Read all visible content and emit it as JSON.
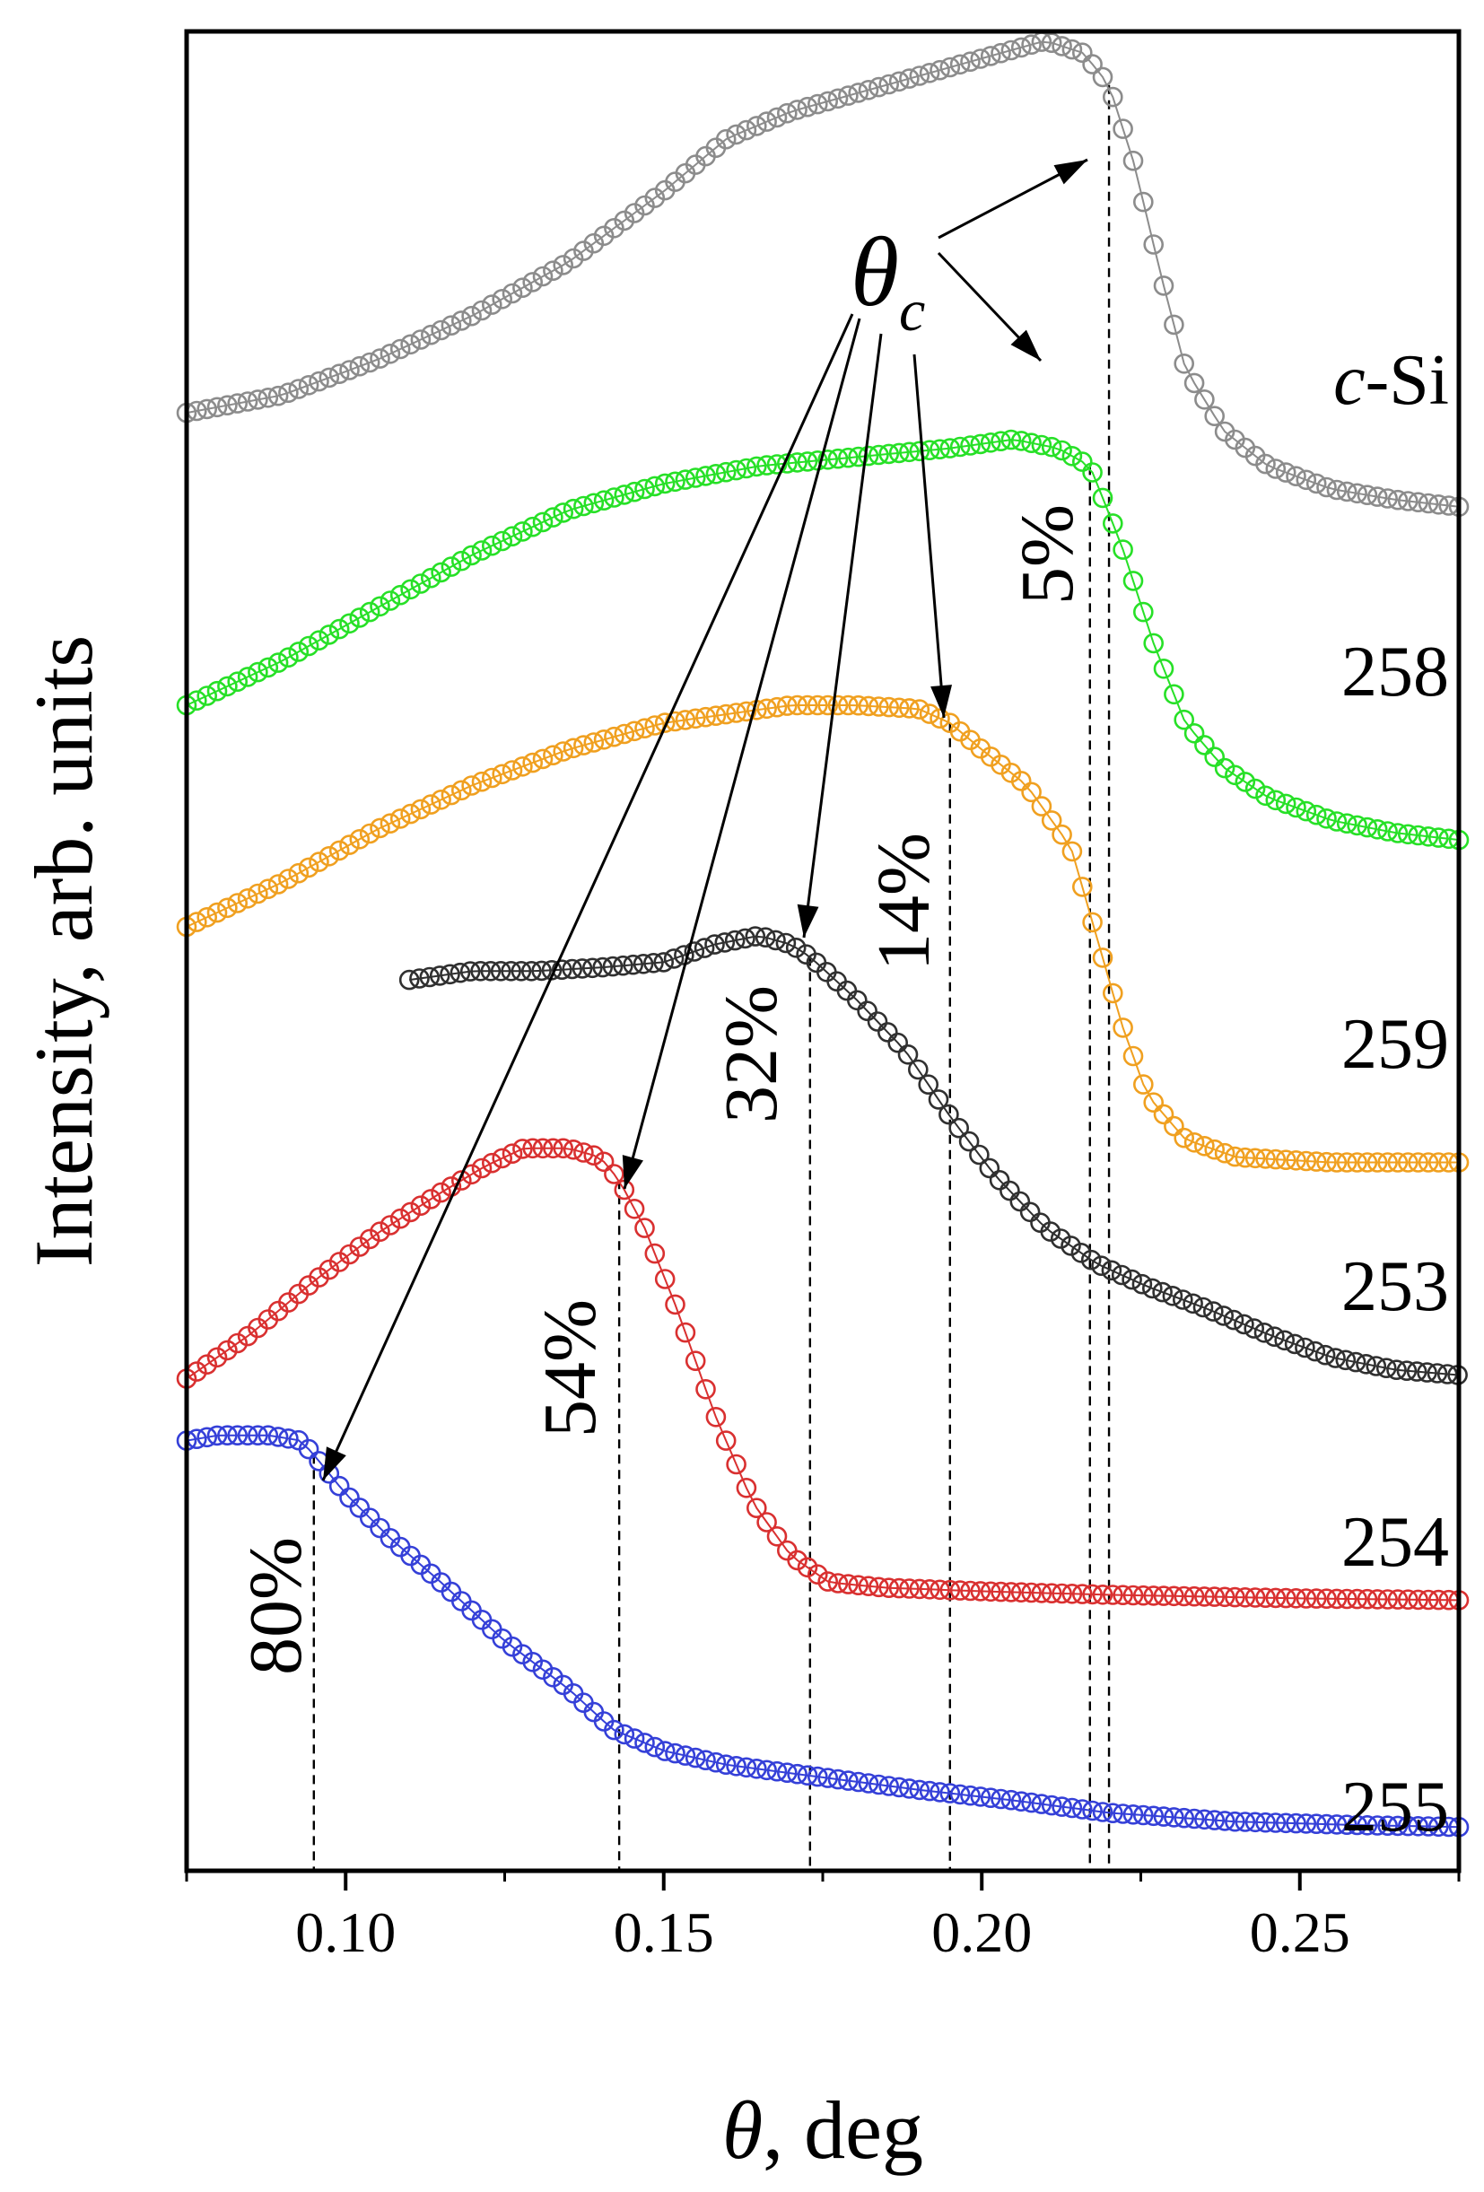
{
  "chart_data": {
    "type": "scatter",
    "xlabel_symbol": "θ",
    "xlabel_rest": ", deg",
    "ylabel": "Intensity, arb. units",
    "xlim": [
      0.075,
      0.275
    ],
    "ylim": [
      0,
      10
    ],
    "x_ticks": [
      0.1,
      0.15,
      0.2,
      0.25
    ],
    "x_tick_labels": [
      "0.10",
      "0.15",
      "0.20",
      "0.25"
    ],
    "y_ticks_visible": false,
    "grid": false,
    "marker": "open-circle",
    "annotation_symbol": "θ",
    "annotation_subscript": "c",
    "series": [
      {
        "name": "c-Si",
        "name_italic": "c",
        "name_rest": "-Si",
        "color": "#8c8c8c",
        "x_range": [
          0.075,
          0.275
        ],
        "theta_c": 0.22,
        "percent_label": "",
        "curve": [
          [
            0.075,
            8.05
          ],
          [
            0.09,
            8.15
          ],
          [
            0.105,
            8.35
          ],
          [
            0.12,
            8.6
          ],
          [
            0.135,
            8.9
          ],
          [
            0.15,
            9.3
          ],
          [
            0.16,
            9.6
          ],
          [
            0.17,
            9.75
          ],
          [
            0.18,
            9.85
          ],
          [
            0.19,
            9.95
          ],
          [
            0.2,
            10.05
          ],
          [
            0.21,
            10.15
          ],
          [
            0.216,
            10.08
          ],
          [
            0.22,
            9.9
          ],
          [
            0.224,
            9.45
          ],
          [
            0.228,
            8.85
          ],
          [
            0.232,
            8.3
          ],
          [
            0.238,
            7.95
          ],
          [
            0.245,
            7.75
          ],
          [
            0.255,
            7.62
          ],
          [
            0.265,
            7.56
          ],
          [
            0.275,
            7.52
          ]
        ]
      },
      {
        "name": "258",
        "color": "#27e027",
        "x_range": [
          0.075,
          0.275
        ],
        "theta_c": 0.217,
        "percent_label": "5%",
        "curve": [
          [
            0.075,
            6.4
          ],
          [
            0.09,
            6.65
          ],
          [
            0.105,
            6.95
          ],
          [
            0.12,
            7.25
          ],
          [
            0.135,
            7.5
          ],
          [
            0.15,
            7.65
          ],
          [
            0.165,
            7.75
          ],
          [
            0.18,
            7.8
          ],
          [
            0.195,
            7.85
          ],
          [
            0.205,
            7.9
          ],
          [
            0.212,
            7.85
          ],
          [
            0.217,
            7.75
          ],
          [
            0.222,
            7.3
          ],
          [
            0.227,
            6.75
          ],
          [
            0.232,
            6.3
          ],
          [
            0.238,
            6.05
          ],
          [
            0.245,
            5.88
          ],
          [
            0.255,
            5.75
          ],
          [
            0.265,
            5.68
          ],
          [
            0.275,
            5.64
          ]
        ]
      },
      {
        "name": "259",
        "color": "#f0a020",
        "x_range": [
          0.075,
          0.275
        ],
        "theta_c": 0.195,
        "percent_label": "14%",
        "curve": [
          [
            0.075,
            5.15
          ],
          [
            0.09,
            5.4
          ],
          [
            0.105,
            5.7
          ],
          [
            0.12,
            5.95
          ],
          [
            0.135,
            6.15
          ],
          [
            0.15,
            6.3
          ],
          [
            0.16,
            6.35
          ],
          [
            0.17,
            6.4
          ],
          [
            0.18,
            6.4
          ],
          [
            0.19,
            6.38
          ],
          [
            0.195,
            6.3
          ],
          [
            0.2,
            6.15
          ],
          [
            0.207,
            5.95
          ],
          [
            0.214,
            5.6
          ],
          [
            0.218,
            5.1
          ],
          [
            0.222,
            4.6
          ],
          [
            0.226,
            4.2
          ],
          [
            0.232,
            3.95
          ],
          [
            0.24,
            3.85
          ],
          [
            0.255,
            3.82
          ],
          [
            0.275,
            3.82
          ]
        ]
      },
      {
        "name": "253",
        "color": "#303030",
        "x_range": [
          0.11,
          0.275
        ],
        "theta_c": 0.173,
        "percent_label": "32%",
        "curve": [
          [
            0.11,
            4.85
          ],
          [
            0.12,
            4.9
          ],
          [
            0.13,
            4.9
          ],
          [
            0.14,
            4.92
          ],
          [
            0.15,
            4.95
          ],
          [
            0.158,
            5.05
          ],
          [
            0.165,
            5.1
          ],
          [
            0.17,
            5.05
          ],
          [
            0.173,
            4.98
          ],
          [
            0.18,
            4.75
          ],
          [
            0.188,
            4.45
          ],
          [
            0.195,
            4.08
          ],
          [
            0.202,
            3.75
          ],
          [
            0.21,
            3.45
          ],
          [
            0.218,
            3.25
          ],
          [
            0.226,
            3.12
          ],
          [
            0.235,
            3.0
          ],
          [
            0.245,
            2.85
          ],
          [
            0.255,
            2.72
          ],
          [
            0.265,
            2.65
          ],
          [
            0.275,
            2.62
          ]
        ]
      },
      {
        "name": "254",
        "color": "#d93030",
        "x_range": [
          0.075,
          0.275
        ],
        "theta_c": 0.143,
        "percent_label": "54%",
        "curve": [
          [
            0.075,
            2.6
          ],
          [
            0.085,
            2.85
          ],
          [
            0.095,
            3.15
          ],
          [
            0.105,
            3.42
          ],
          [
            0.115,
            3.65
          ],
          [
            0.122,
            3.8
          ],
          [
            0.128,
            3.9
          ],
          [
            0.135,
            3.9
          ],
          [
            0.14,
            3.85
          ],
          [
            0.143,
            3.72
          ],
          [
            0.147,
            3.45
          ],
          [
            0.152,
            3.0
          ],
          [
            0.158,
            2.4
          ],
          [
            0.164,
            1.9
          ],
          [
            0.17,
            1.6
          ],
          [
            0.176,
            1.45
          ],
          [
            0.185,
            1.42
          ],
          [
            0.2,
            1.4
          ],
          [
            0.22,
            1.38
          ],
          [
            0.25,
            1.36
          ],
          [
            0.275,
            1.35
          ]
        ]
      },
      {
        "name": "255",
        "color": "#3540d8",
        "x_range": [
          0.075,
          0.275
        ],
        "theta_c": 0.095,
        "percent_label": "80%",
        "curve": [
          [
            0.075,
            2.25
          ],
          [
            0.08,
            2.28
          ],
          [
            0.088,
            2.28
          ],
          [
            0.093,
            2.25
          ],
          [
            0.095,
            2.17
          ],
          [
            0.1,
            1.95
          ],
          [
            0.107,
            1.7
          ],
          [
            0.115,
            1.45
          ],
          [
            0.125,
            1.12
          ],
          [
            0.135,
            0.85
          ],
          [
            0.142,
            0.62
          ],
          [
            0.15,
            0.5
          ],
          [
            0.16,
            0.42
          ],
          [
            0.175,
            0.35
          ],
          [
            0.19,
            0.28
          ],
          [
            0.205,
            0.22
          ],
          [
            0.22,
            0.15
          ],
          [
            0.24,
            0.1
          ],
          [
            0.26,
            0.08
          ],
          [
            0.275,
            0.07
          ]
        ]
      }
    ]
  }
}
